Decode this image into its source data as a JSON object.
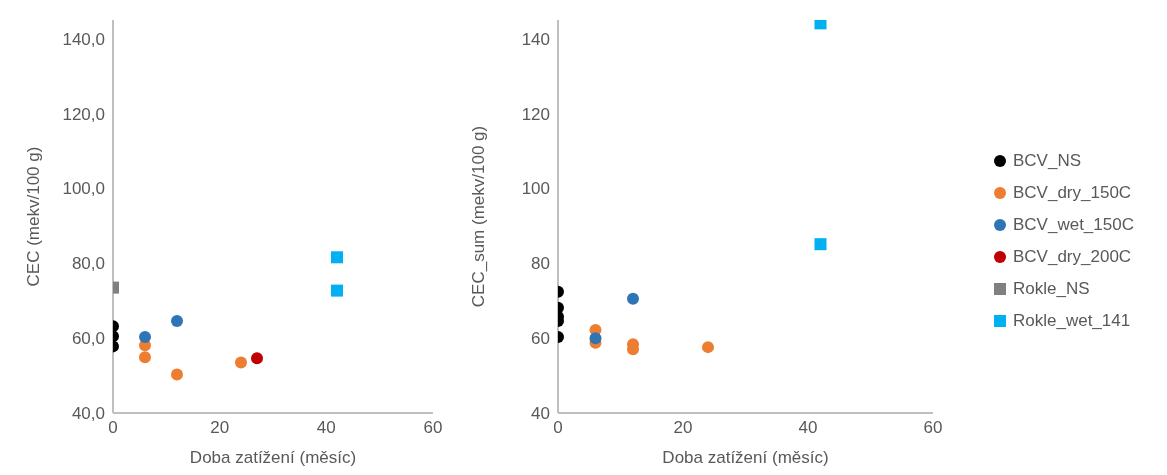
{
  "chart_data": [
    {
      "type": "scatter",
      "xlabel": "Doba zatížení (měsíc)",
      "ylabel": "CEC (mekv/100 g)",
      "xlim": [
        0,
        60
      ],
      "xticks": [
        0,
        20,
        40,
        60
      ],
      "ylim": [
        40,
        145
      ],
      "yticks": [
        {
          "value": 40,
          "label": "40,0"
        },
        {
          "value": 60,
          "label": "60,0"
        },
        {
          "value": 80,
          "label": "80,0"
        },
        {
          "value": 100,
          "label": "100,0"
        },
        {
          "value": 120,
          "label": "120,0"
        },
        {
          "value": 140,
          "label": "140,0"
        }
      ],
      "grid": false,
      "legend": "right",
      "series": [
        {
          "name": "BCV_NS",
          "color": "#000000",
          "marker": "circle",
          "x": [
            0,
            0,
            0
          ],
          "values": [
            63.2,
            60.5,
            57.8
          ]
        },
        {
          "name": "BCV_dry_150C",
          "color": "#ed7d31",
          "marker": "circle",
          "x": [
            6,
            6,
            12,
            24
          ],
          "values": [
            58.1,
            54.9,
            50.3,
            53.5
          ]
        },
        {
          "name": "BCV_wet_150C",
          "color": "#2e75b6",
          "marker": "circle",
          "x": [
            6,
            12
          ],
          "values": [
            60.3,
            64.6
          ]
        },
        {
          "name": "BCV_dry_200C",
          "color": "#c00000",
          "marker": "circle",
          "x": [
            27
          ],
          "values": [
            54.6
          ]
        },
        {
          "name": "Rokle_NS",
          "color": "#808080",
          "marker": "square",
          "x": [
            0
          ],
          "values": [
            73.5
          ]
        },
        {
          "name": "Rokle_wet_141",
          "color": "#00b0f0",
          "marker": "square",
          "x": [
            42,
            42
          ],
          "values": [
            81.6,
            72.7
          ]
        }
      ]
    },
    {
      "type": "scatter",
      "xlabel": "Doba zatížení (měsíc)",
      "ylabel": "CEC_sum (mekv/100 g)",
      "xlim": [
        0,
        60
      ],
      "xticks": [
        0,
        20,
        40,
        60
      ],
      "ylim": [
        40,
        145
      ],
      "yticks": [
        40,
        60,
        80,
        100,
        120,
        140
      ],
      "grid": false,
      "series": [
        {
          "color": "#000000",
          "marker": "circle",
          "x": [
            0,
            0,
            0,
            0,
            0
          ],
          "values": [
            72.4,
            68.1,
            65.7,
            64.6,
            60.3
          ]
        },
        {
          "color": "#ed7d31",
          "marker": "circle",
          "x": [
            6,
            6,
            12,
            12,
            24
          ],
          "values": [
            62.2,
            58.8,
            58.4,
            57.0,
            57.6
          ]
        },
        {
          "color": "#2e75b6",
          "marker": "circle",
          "x": [
            6,
            12
          ],
          "values": [
            60.0,
            70.5
          ]
        },
        {
          "color": "#00b0f0",
          "marker": "square",
          "x": [
            42,
            42
          ],
          "values": [
            144.1,
            85.1
          ]
        }
      ]
    }
  ]
}
